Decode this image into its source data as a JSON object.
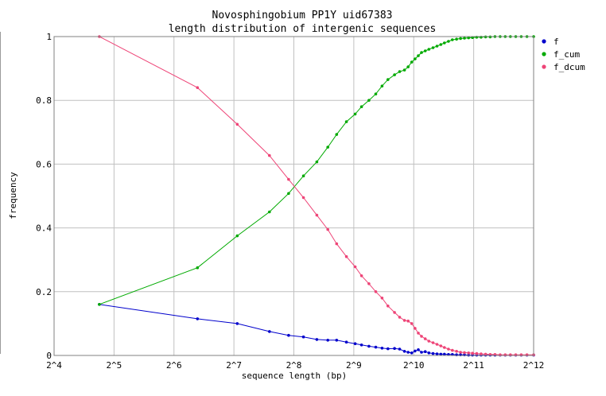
{
  "chart_data": {
    "type": "line",
    "title": "Novosphingobium PP1Y uid67383",
    "subtitle": "length distribution of intergenic sequences",
    "xlabel": "sequence length (bp)",
    "ylabel": "frequency",
    "x_scale": "log2",
    "xlim": [
      16,
      4096
    ],
    "ylim": [
      0,
      1
    ],
    "x_ticks": [
      {
        "value": 16,
        "label": "2^4"
      },
      {
        "value": 32,
        "label": "2^5"
      },
      {
        "value": 64,
        "label": "2^6"
      },
      {
        "value": 128,
        "label": "2^7"
      },
      {
        "value": 256,
        "label": "2^8"
      },
      {
        "value": 512,
        "label": "2^9"
      },
      {
        "value": 1024,
        "label": "2^10"
      },
      {
        "value": 2048,
        "label": "2^11"
      },
      {
        "value": 4096,
        "label": "2^12"
      }
    ],
    "y_ticks": [
      {
        "value": 0,
        "label": "0"
      },
      {
        "value": 0.2,
        "label": "0.2"
      },
      {
        "value": 0.4,
        "label": "0.4"
      },
      {
        "value": 0.6,
        "label": "0.6"
      },
      {
        "value": 0.8,
        "label": "0.8"
      },
      {
        "value": 1,
        "label": "1"
      }
    ],
    "grid": true,
    "legend_position": "right",
    "series": [
      {
        "name": "f",
        "color": "#0000cc",
        "points": [
          [
            27,
            0.16
          ],
          [
            84,
            0.115
          ],
          [
            133,
            0.1
          ],
          [
            193,
            0.075
          ],
          [
            241,
            0.063
          ],
          [
            286,
            0.058
          ],
          [
            334,
            0.05
          ],
          [
            379,
            0.048
          ],
          [
            420,
            0.048
          ],
          [
            470,
            0.042
          ],
          [
            520,
            0.037
          ],
          [
            560,
            0.033
          ],
          [
            610,
            0.029
          ],
          [
            660,
            0.026
          ],
          [
            710,
            0.023
          ],
          [
            760,
            0.021
          ],
          [
            820,
            0.022
          ],
          [
            870,
            0.02
          ],
          [
            920,
            0.013
          ],
          [
            960,
            0.01
          ],
          [
            1000,
            0.008
          ],
          [
            1040,
            0.014
          ],
          [
            1080,
            0.018
          ],
          [
            1120,
            0.01
          ],
          [
            1170,
            0.012
          ],
          [
            1220,
            0.008
          ],
          [
            1280,
            0.006
          ],
          [
            1340,
            0.005
          ],
          [
            1400,
            0.004
          ],
          [
            1460,
            0.004
          ],
          [
            1530,
            0.003
          ],
          [
            1600,
            0.003
          ],
          [
            1680,
            0.002
          ],
          [
            1760,
            0.002
          ],
          [
            1840,
            0.002
          ],
          [
            1930,
            0.001
          ],
          [
            2020,
            0.001
          ],
          [
            2120,
            0.001
          ],
          [
            2230,
            0.001
          ],
          [
            2350,
            0.001
          ],
          [
            2480,
            0.001
          ],
          [
            2620,
            0.001
          ],
          [
            2780,
            0.001
          ],
          [
            2950,
            0.001
          ],
          [
            3130,
            0.001
          ],
          [
            3330,
            0.001
          ],
          [
            3550,
            0.001
          ],
          [
            3790,
            0.001
          ],
          [
            4096,
            0.001
          ]
        ]
      },
      {
        "name": "f_cum",
        "color": "#00aa00",
        "points": [
          [
            27,
            0.16
          ],
          [
            84,
            0.275
          ],
          [
            133,
            0.375
          ],
          [
            193,
            0.45
          ],
          [
            241,
            0.508
          ],
          [
            286,
            0.563
          ],
          [
            334,
            0.607
          ],
          [
            379,
            0.653
          ],
          [
            420,
            0.693
          ],
          [
            470,
            0.733
          ],
          [
            520,
            0.757
          ],
          [
            560,
            0.78
          ],
          [
            610,
            0.8
          ],
          [
            660,
            0.82
          ],
          [
            710,
            0.845
          ],
          [
            760,
            0.865
          ],
          [
            820,
            0.88
          ],
          [
            870,
            0.89
          ],
          [
            920,
            0.895
          ],
          [
            960,
            0.905
          ],
          [
            1000,
            0.92
          ],
          [
            1040,
            0.93
          ],
          [
            1080,
            0.94
          ],
          [
            1120,
            0.95
          ],
          [
            1170,
            0.955
          ],
          [
            1220,
            0.96
          ],
          [
            1280,
            0.965
          ],
          [
            1340,
            0.97
          ],
          [
            1400,
            0.975
          ],
          [
            1460,
            0.98
          ],
          [
            1530,
            0.985
          ],
          [
            1600,
            0.99
          ],
          [
            1680,
            0.992
          ],
          [
            1760,
            0.994
          ],
          [
            1840,
            0.995
          ],
          [
            1930,
            0.996
          ],
          [
            2020,
            0.997
          ],
          [
            2120,
            0.998
          ],
          [
            2230,
            0.998
          ],
          [
            2350,
            0.999
          ],
          [
            2480,
            0.999
          ],
          [
            2620,
            1.0
          ],
          [
            2780,
            1.0
          ],
          [
            2950,
            1.0
          ],
          [
            3130,
            1.0
          ],
          [
            3330,
            1.0
          ],
          [
            3550,
            1.0
          ],
          [
            3790,
            1.0
          ],
          [
            4096,
            1.0
          ]
        ]
      },
      {
        "name": "f_dcum",
        "color": "#ee4477",
        "points": [
          [
            27,
            1.0
          ],
          [
            84,
            0.84
          ],
          [
            133,
            0.725
          ],
          [
            193,
            0.627
          ],
          [
            241,
            0.552
          ],
          [
            286,
            0.495
          ],
          [
            334,
            0.44
          ],
          [
            379,
            0.395
          ],
          [
            420,
            0.35
          ],
          [
            470,
            0.31
          ],
          [
            520,
            0.278
          ],
          [
            560,
            0.25
          ],
          [
            610,
            0.225
          ],
          [
            660,
            0.2
          ],
          [
            710,
            0.18
          ],
          [
            760,
            0.155
          ],
          [
            820,
            0.135
          ],
          [
            870,
            0.12
          ],
          [
            920,
            0.11
          ],
          [
            960,
            0.108
          ],
          [
            1000,
            0.1
          ],
          [
            1040,
            0.085
          ],
          [
            1080,
            0.07
          ],
          [
            1120,
            0.06
          ],
          [
            1170,
            0.052
          ],
          [
            1220,
            0.045
          ],
          [
            1280,
            0.04
          ],
          [
            1340,
            0.035
          ],
          [
            1400,
            0.03
          ],
          [
            1460,
            0.025
          ],
          [
            1530,
            0.02
          ],
          [
            1600,
            0.016
          ],
          [
            1680,
            0.013
          ],
          [
            1760,
            0.01
          ],
          [
            1840,
            0.009
          ],
          [
            1930,
            0.008
          ],
          [
            2020,
            0.007
          ],
          [
            2120,
            0.006
          ],
          [
            2230,
            0.005
          ],
          [
            2350,
            0.004
          ],
          [
            2480,
            0.003
          ],
          [
            2620,
            0.003
          ],
          [
            2780,
            0.002
          ],
          [
            2950,
            0.002
          ],
          [
            3130,
            0.002
          ],
          [
            3330,
            0.002
          ],
          [
            3550,
            0.002
          ],
          [
            3790,
            0.002
          ],
          [
            4096,
            0.002
          ]
        ]
      }
    ]
  }
}
